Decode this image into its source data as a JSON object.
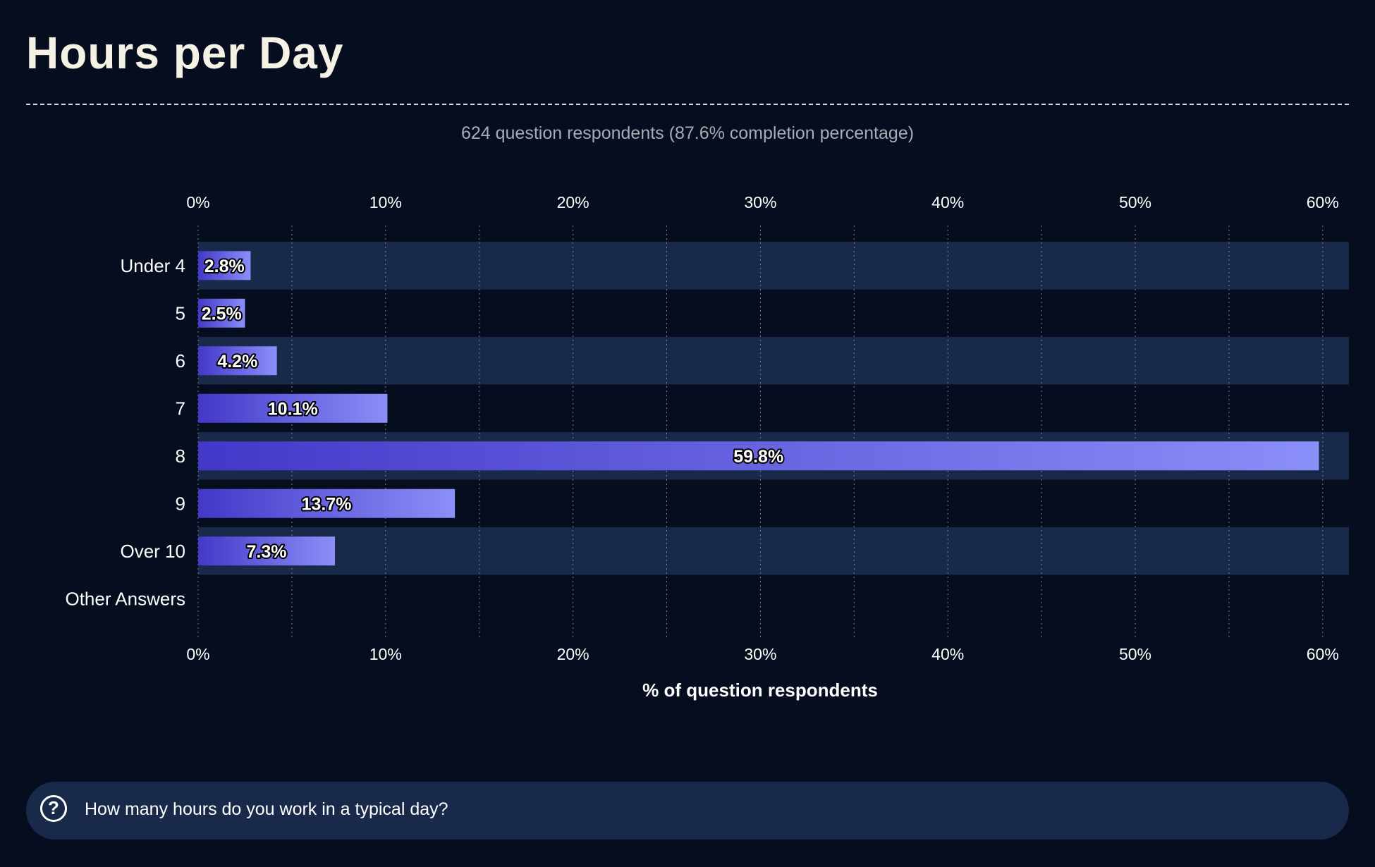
{
  "page": {
    "title": "Hours per Day",
    "subtitle": "624 question respondents (87.6% completion percentage)",
    "question": "How many hours do you work in a typical day?",
    "question_icon": "question-circle-icon",
    "question_icon_glyph": "?"
  },
  "colors": {
    "background": "#050d1e",
    "band": "#18294a",
    "bar_start": "#4338c8",
    "bar_end": "#8b8ff8",
    "text": "#ffffff"
  },
  "chart_data": {
    "type": "bar",
    "orientation": "horizontal",
    "categories": [
      "Under 4",
      "5",
      "6",
      "7",
      "8",
      "9",
      "Over 10",
      "Other Answers"
    ],
    "values": [
      2.8,
      2.5,
      4.2,
      10.1,
      59.8,
      13.7,
      7.3,
      null
    ],
    "value_labels": [
      "2.8%",
      "2.5%",
      "4.2%",
      "10.1%",
      "59.8%",
      "13.7%",
      "7.3%",
      ""
    ],
    "x_ticks": [
      0,
      10,
      20,
      30,
      40,
      50,
      60
    ],
    "x_tick_labels": [
      "0%",
      "10%",
      "20%",
      "30%",
      "40%",
      "50%",
      "60%"
    ],
    "xlim": [
      0,
      61.5
    ],
    "xlabel": "% of question respondents",
    "ylabel": "",
    "grid": "vertical dotted every 5%",
    "legend": "none"
  }
}
